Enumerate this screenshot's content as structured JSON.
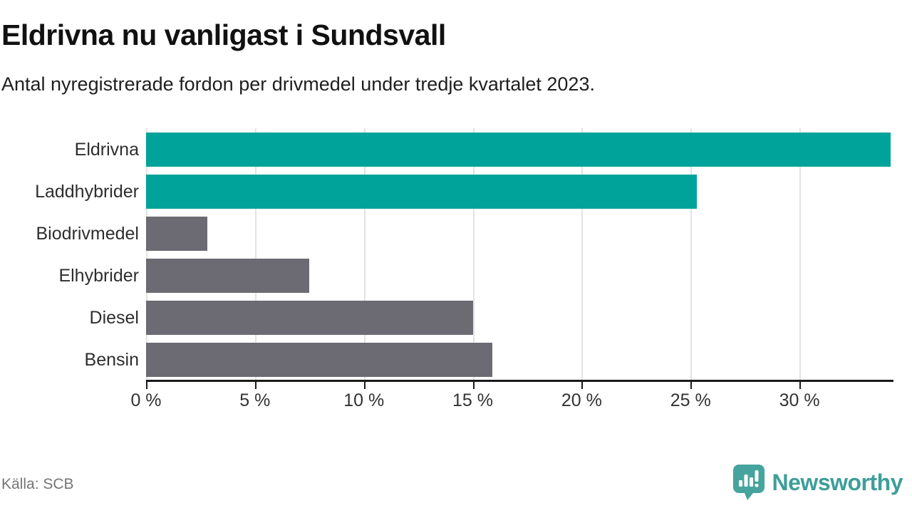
{
  "header": {
    "title": "Eldrivna nu vanligast i Sundsvall",
    "subtitle": "Antal nyregistrerade fordon per drivmedel under tredje kvartalet 2023."
  },
  "footer": {
    "source": "Källa: SCB",
    "brand": "Newsworthy"
  },
  "colors": {
    "accent_teal": "#00a39a",
    "neutral_gray": "#6c6a73",
    "gridline": "#e3e3e3",
    "axis": "#1a1a1a",
    "brand_teal": "#45a49d"
  },
  "chart_data": {
    "type": "bar",
    "orientation": "horizontal",
    "title": "Eldrivna nu vanligast i Sundsvall",
    "subtitle": "Antal nyregistrerade fordon per drivmedel under tredje kvartalet 2023.",
    "categories": [
      "Eldrivna",
      "Laddhybrider",
      "Biodrivmedel",
      "Elhybrider",
      "Diesel",
      "Bensin"
    ],
    "values": [
      34.2,
      25.3,
      2.8,
      7.5,
      15.0,
      15.9
    ],
    "unit": "%",
    "bar_colors": [
      "#00a39a",
      "#00a39a",
      "#6c6a73",
      "#6c6a73",
      "#6c6a73",
      "#6c6a73"
    ],
    "xlim": [
      0,
      34.25
    ],
    "xticks": [
      0,
      5,
      10,
      15,
      20,
      25,
      30
    ],
    "xtick_suffix": " %",
    "grid": true,
    "legend": false
  }
}
